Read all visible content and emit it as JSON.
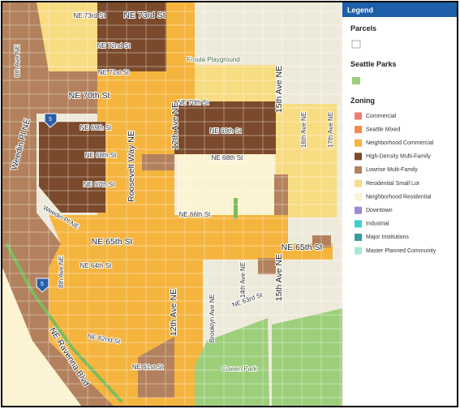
{
  "map": {
    "labels": [
      "NE 73rd St",
      "NE 73rd St",
      "NE 72nd St",
      "NE 71st St",
      "NE 70th St",
      "NE 70th St",
      "NE 69th St",
      "NE 69th St",
      "NE 68th St",
      "NE 68th St",
      "NE 67th St",
      "NE 66th St",
      "NE 65th St",
      "NE 65th St",
      "NE 64th St",
      "NE 63rd St",
      "NE 62nd St",
      "NE 61st St",
      "8th Ave NE",
      "8th Ave NE",
      "Weedin Pl NE",
      "Weedin Pl NE",
      "Roosevelt Way NE",
      "12th Ave NE",
      "12th Ave NE",
      "15th Ave NE",
      "15th Ave NE",
      "14th Ave NE",
      "Brooklyn Ave NE",
      "NE Ravenna Blvd",
      "Froula Playground",
      "Cowen Park",
      "16th Ave NE",
      "17th Ave NE"
    ],
    "shields": [
      "5",
      "5"
    ]
  },
  "legend": {
    "title": "Legend",
    "sections": [
      {
        "heading": "Parcels",
        "swatch_color": "#ffffff"
      },
      {
        "heading": "Seattle Parks",
        "swatch_color": "#9dcf7b"
      },
      {
        "heading": "Zoning",
        "items": [
          {
            "label": "Commercial",
            "color": "#ee7d74"
          },
          {
            "label": "Seattle Mixed",
            "color": "#f28a4c"
          },
          {
            "label": "Neighborhood Commercial",
            "color": "#f5b43e"
          },
          {
            "label": "High-Density Multi-Family",
            "color": "#7b4a2c"
          },
          {
            "label": "Lowrise Multi-Family",
            "color": "#b3815d"
          },
          {
            "label": "Residential Small Lot",
            "color": "#f8dc82"
          },
          {
            "label": "Neighborhood Residential",
            "color": "#fbf3d2"
          },
          {
            "label": "Downtown",
            "color": "#9d88d6"
          },
          {
            "label": "Industrial",
            "color": "#3ecfd6"
          },
          {
            "label": "Major Institutions",
            "color": "#3a9c9e"
          },
          {
            "label": "Master Planned Community",
            "color": "#a9e9d2"
          }
        ]
      }
    ]
  }
}
